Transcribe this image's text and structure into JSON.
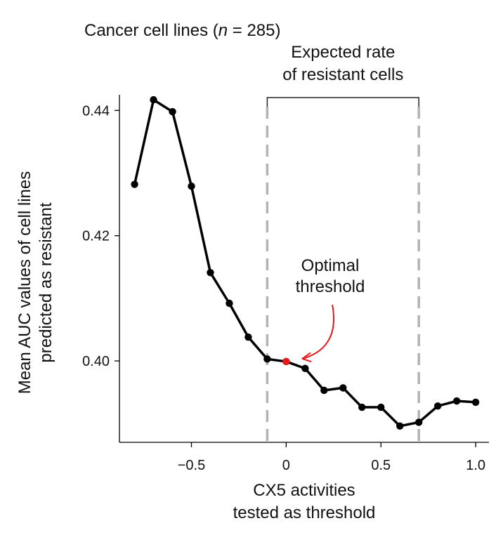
{
  "chart_data": {
    "type": "line",
    "title": "Cancer cell lines (n = 285)",
    "title_parts": {
      "prefix": "Cancer cell lines (",
      "italic": "n",
      "suffix": " = 285)"
    },
    "xlabel_lines": [
      "CX5 activities",
      "tested as threshold"
    ],
    "ylabel_lines": [
      "Mean AUC values of cell lines",
      "predicted as resistant"
    ],
    "xlim": [
      -0.88,
      1.07
    ],
    "ylim": [
      0.387,
      0.4425
    ],
    "xticks": [
      {
        "value": -0.5,
        "label": "−0.5"
      },
      {
        "value": 0,
        "label": "0"
      },
      {
        "value": 0.5,
        "label": "0.5"
      },
      {
        "value": 1.0,
        "label": "1.0"
      }
    ],
    "yticks": [
      {
        "value": 0.4,
        "label": "0.40"
      },
      {
        "value": 0.42,
        "label": "0.42"
      },
      {
        "value": 0.44,
        "label": "0.44"
      }
    ],
    "series": [
      {
        "name": "Mean AUC",
        "color": "#000000",
        "x": [
          -0.8,
          -0.7,
          -0.6,
          -0.5,
          -0.4,
          -0.3,
          -0.2,
          -0.1,
          0.0,
          0.1,
          0.2,
          0.3,
          0.4,
          0.5,
          0.6,
          0.7,
          0.8,
          0.9,
          1.0
        ],
        "y": [
          0.4282,
          0.4417,
          0.4398,
          0.4279,
          0.4141,
          0.4092,
          0.4038,
          0.4003,
          0.3999,
          0.3988,
          0.3953,
          0.3957,
          0.3926,
          0.3926,
          0.3896,
          0.3902,
          0.3928,
          0.3936,
          0.3934
        ]
      }
    ],
    "highlight_point": {
      "x": 0.0,
      "y": 0.3999,
      "color": "#e8191c",
      "label_lines": [
        "Optimal",
        "threshold"
      ]
    },
    "reference_lines": {
      "x": [
        -0.1,
        0.7
      ],
      "color": "#b3b3b3",
      "style": "dashed"
    },
    "bracket": {
      "x_start": -0.1,
      "x_end": 0.7,
      "label_lines": [
        "Expected rate",
        "of resistant cells"
      ]
    },
    "grid": false,
    "legend": "none"
  }
}
